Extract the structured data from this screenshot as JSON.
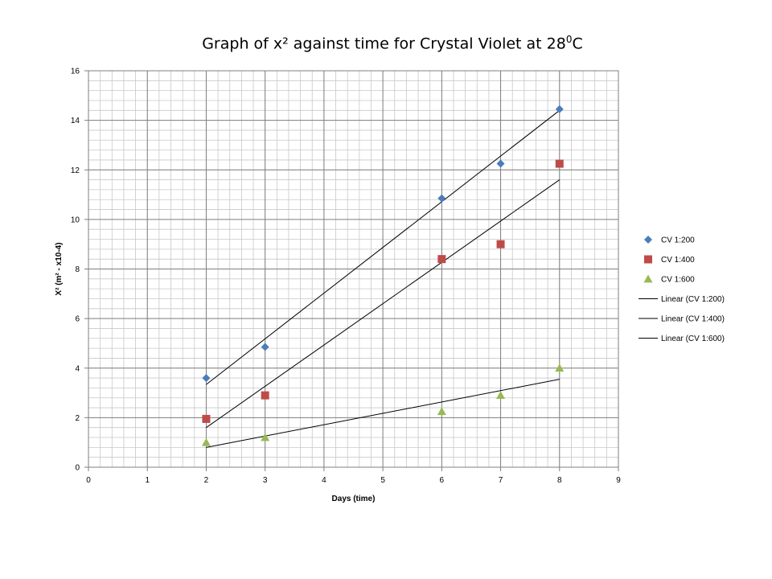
{
  "chart_data": {
    "type": "scatter",
    "title_main": "Graph of x² against time for Crystal Violet at 28",
    "title_sup": "0",
    "title_end": "C",
    "xlabel": "Days (time)",
    "ylabel": "X² (m² - x10-4)",
    "xlim": [
      0,
      9
    ],
    "ylim": [
      0,
      16
    ],
    "xticks": [
      0,
      1,
      2,
      3,
      4,
      5,
      6,
      7,
      8,
      9
    ],
    "yticks": [
      0,
      2,
      4,
      6,
      8,
      10,
      12,
      14,
      16
    ],
    "x_minor_step": 0.2,
    "y_minor_step": 0.4,
    "grid": true,
    "legend_position": "right",
    "series": [
      {
        "name": "CV 1:200",
        "marker": "diamond",
        "color": "#4a7ebb",
        "x": [
          2,
          3,
          6,
          7,
          8
        ],
        "y": [
          3.6,
          4.85,
          10.85,
          12.25,
          14.45
        ]
      },
      {
        "name": "CV 1:400",
        "marker": "square",
        "color": "#be4b48",
        "x": [
          2,
          3,
          6,
          7,
          8
        ],
        "y": [
          1.95,
          2.9,
          8.4,
          9.0,
          12.25
        ]
      },
      {
        "name": "CV 1:600",
        "marker": "triangle",
        "color": "#98b954",
        "x": [
          2,
          3,
          6,
          7,
          8
        ],
        "y": [
          1.0,
          1.2,
          2.25,
          2.9,
          4.0
        ]
      }
    ],
    "trendlines": [
      {
        "name": "Linear (CV 1:200)",
        "color": "#000000",
        "x": [
          2,
          8
        ],
        "y": [
          3.34,
          14.4
        ]
      },
      {
        "name": "Linear (CV 1:400)",
        "color": "#000000",
        "x": [
          2,
          8
        ],
        "y": [
          1.6,
          11.6
        ]
      },
      {
        "name": "Linear (CV 1:600)",
        "color": "#000000",
        "x": [
          2,
          8
        ],
        "y": [
          0.8,
          3.55
        ]
      }
    ]
  }
}
